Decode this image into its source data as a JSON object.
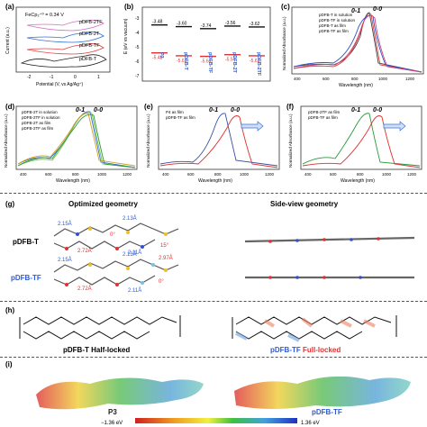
{
  "panels": {
    "a": {
      "label": "(a)",
      "annotation": "FeCp₂⁺⁰ = 0.34 V",
      "ylabel": "Current (a.u.)",
      "xlabel": "Potential (V, vs Ag/Ag⁺)",
      "xticks": [
        "-2",
        "-1",
        "0",
        "1"
      ],
      "curves": [
        {
          "label": "pDFB-2TF",
          "color": "#d070c0"
        },
        {
          "label": "pDFB-2T",
          "color": "#3070d0"
        },
        {
          "label": "pDFB-TF",
          "color": "#e04040"
        },
        {
          "label": "pDFB-T",
          "color": "#222222"
        }
      ]
    },
    "b": {
      "label": "(b)",
      "ylabel": "E (eV vs vacuum)",
      "yticks": [
        "-3",
        "-4",
        "-5",
        "-6",
        "-7"
      ],
      "materials": [
        "P3",
        "pDFB-T",
        "pDFB-TF",
        "pDFB-2T",
        "pDFB-2TF"
      ],
      "lumo": [
        "-3.48",
        "-3.60",
        "-3.74",
        "-3.56",
        "-3.62"
      ],
      "homo": [
        "-5.42",
        "-5.62",
        "-5.66",
        "-5.54",
        "-5.62"
      ]
    },
    "c": {
      "label": "(c)",
      "ylabel": "Normalized Absorbance (a.u.)",
      "xlabel": "Wavelength (nm)",
      "xticks": [
        "400",
        "600",
        "800",
        "1000",
        "1200"
      ],
      "legend": [
        "pDFB-T in solution",
        "pDFB-TF in solution",
        "pDFB-T as film",
        "pDFB-TF as film"
      ],
      "peak1": "0-1",
      "peak2": "0-0"
    },
    "d": {
      "label": "(d)",
      "ylabel": "Normalized Absorbance (a.u.)",
      "xlabel": "Wavelength (nm)",
      "xticks": [
        "400",
        "600",
        "800",
        "1000",
        "1200"
      ],
      "legend": [
        "pDFB-2T in solution",
        "pDFB-2TF in solution",
        "pDFB-2T as film",
        "pDFB-2TF as film"
      ],
      "peak1": "0-1",
      "peak2": "0-0"
    },
    "e": {
      "label": "(e)",
      "ylabel": "Normalized Absorbance (a.u.)",
      "xlabel": "Wavelength (nm)",
      "xticks": [
        "400",
        "600",
        "800",
        "1000",
        "1200"
      ],
      "legend": [
        "P4 as film",
        "pDFB-TF as film"
      ],
      "peak1": "0-1",
      "peak2": "0-0"
    },
    "f": {
      "label": "(f)",
      "ylabel": "Normalized Absorbance (a.u.)",
      "xlabel": "Wavelength (nm)",
      "xticks": [
        "400",
        "600",
        "800",
        "1000",
        "1200"
      ],
      "legend": [
        "pDFB-2TF as film",
        "pDFB-TF as film"
      ],
      "peak1": "0-1",
      "peak2": "0-0"
    },
    "g": {
      "label": "(g)",
      "title_left": "Optimized geometry",
      "title_right": "Side-view geometry",
      "mol1": "pDFB-T",
      "mol2": "pDFB-TF",
      "mol1_labels": [
        "2.15Å",
        "2.13Å",
        "2.72Å",
        "2.11Å",
        "15°",
        "0°"
      ],
      "mol2_labels": [
        "2.15Å",
        "2.13Å",
        "2.97Å",
        "2.72Å",
        "2.11Å",
        "0°"
      ]
    },
    "h": {
      "label": "(h)",
      "left_name": "pDFB-T",
      "left_suffix": "Half-locked",
      "right_name": "pDFB-TF",
      "right_suffix": "Full-locked"
    },
    "i": {
      "label": "(i)",
      "left": "P3",
      "right": "pDFB-TF",
      "scale_min": "−1.36 eV",
      "scale_max": "1.36 eV"
    }
  }
}
